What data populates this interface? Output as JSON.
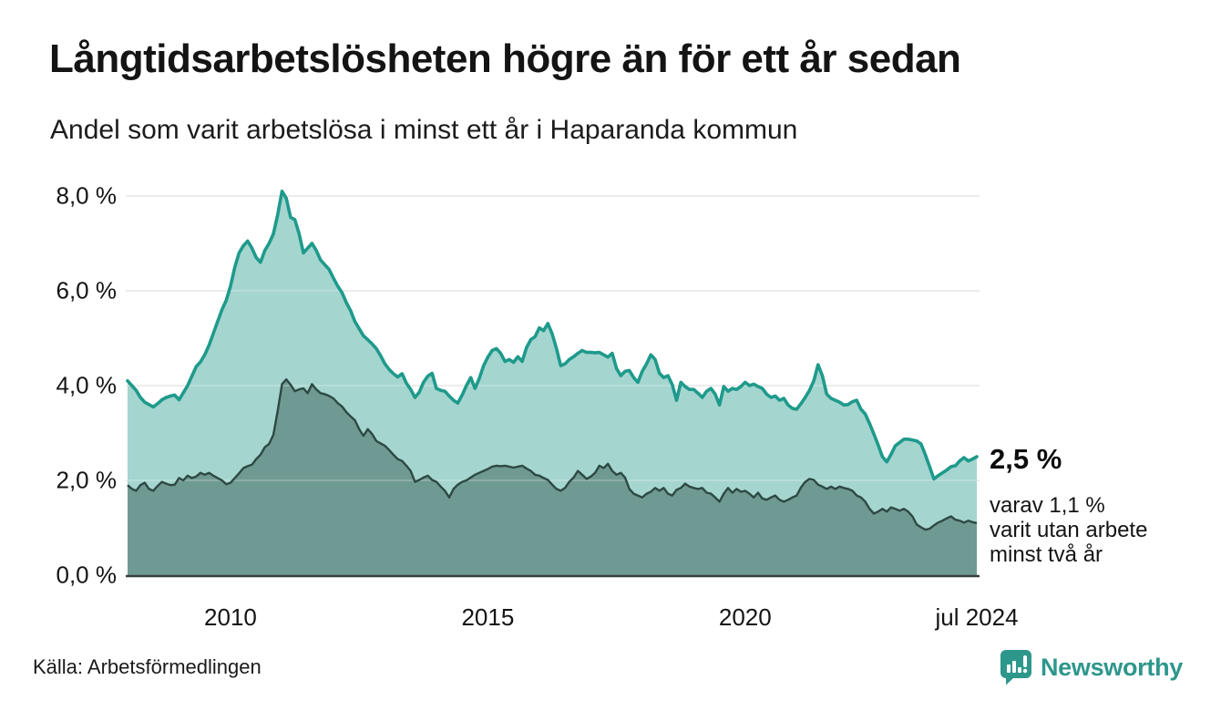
{
  "header": {
    "title": "Långtidsarbetslösheten högre än för ett år sedan",
    "subtitle": "Andel som varit arbetslösa i minst ett år i Haparanda kommun"
  },
  "annotation": {
    "value_label": "2,5 %",
    "detail_line1": "varav 1,1 %",
    "detail_line2": "varit utan arbete",
    "detail_line3": "minst två år"
  },
  "footer": {
    "source": "Källa: Arbetsförmedlingen",
    "brand": "Newsworthy"
  },
  "colors": {
    "series1_line": "#1e9a8b",
    "series1_fill": "#a5d5cf",
    "series2_line": "#2d4944",
    "series2_fill": "#6f9a93",
    "grid": "#e0e0e0",
    "axis": "#333f3c",
    "text": "#141414",
    "brand": "#2e978c"
  },
  "chart_data": {
    "type": "area",
    "title": "Långtidsarbetslösheten högre än för ett år sedan",
    "subtitle": "Andel som varit arbetslösa i minst ett år i Haparanda kommun",
    "unit": "%",
    "frequency": "monthly",
    "x_start": "2008-01",
    "x_end": "2024-07",
    "grid": true,
    "ylim": [
      0,
      8.6
    ],
    "y_tick_values": [
      0,
      2,
      4,
      6,
      8
    ],
    "y_tick_labels": [
      "0,0 %",
      "2,0 %",
      "4,0 %",
      "6,0 %",
      "8,0 %"
    ],
    "x_tick_labels": [
      "2010",
      "2015",
      "2020",
      "jul 2024"
    ],
    "x_tick_month_index": [
      24,
      84,
      144,
      198
    ],
    "end_labels": {
      "series1": "2,5 %",
      "series2": "1,1 %"
    },
    "series": [
      {
        "name": "Andel arbetslösa minst ett år",
        "last_value": 2.5,
        "values": [
          4.1,
          4.0,
          3.9,
          3.75,
          3.65,
          3.6,
          3.55,
          3.62,
          3.7,
          3.75,
          3.78,
          3.8,
          3.7,
          3.85,
          4.0,
          4.2,
          4.4,
          4.5,
          4.65,
          4.85,
          5.1,
          5.35,
          5.6,
          5.8,
          6.1,
          6.5,
          6.8,
          6.95,
          7.05,
          6.9,
          6.7,
          6.6,
          6.85,
          7.0,
          7.2,
          7.6,
          8.1,
          7.95,
          7.55,
          7.5,
          7.2,
          6.8,
          6.9,
          7.0,
          6.85,
          6.65,
          6.55,
          6.45,
          6.27,
          6.1,
          5.96,
          5.75,
          5.58,
          5.35,
          5.2,
          5.05,
          4.97,
          4.88,
          4.78,
          4.63,
          4.46,
          4.34,
          4.25,
          4.18,
          4.25,
          4.05,
          3.92,
          3.75,
          3.86,
          4.07,
          4.2,
          4.26,
          3.94,
          3.9,
          3.88,
          3.78,
          3.69,
          3.63,
          3.8,
          4.0,
          4.17,
          3.94,
          4.15,
          4.42,
          4.6,
          4.74,
          4.78,
          4.68,
          4.51,
          4.55,
          4.49,
          4.61,
          4.51,
          4.8,
          4.97,
          5.03,
          5.22,
          5.16,
          5.31,
          5.09,
          4.78,
          4.42,
          4.46,
          4.55,
          4.61,
          4.68,
          4.74,
          4.7,
          4.7,
          4.69,
          4.7,
          4.65,
          4.6,
          4.68,
          4.36,
          4.21,
          4.3,
          4.32,
          4.17,
          4.07,
          4.3,
          4.46,
          4.65,
          4.55,
          4.26,
          4.17,
          4.21,
          4.02,
          3.69,
          4.07,
          3.98,
          3.92,
          3.92,
          3.84,
          3.75,
          3.88,
          3.94,
          3.82,
          3.59,
          3.98,
          3.88,
          3.94,
          3.92,
          3.98,
          4.07,
          4.0,
          4.03,
          3.98,
          3.94,
          3.82,
          3.75,
          3.78,
          3.69,
          3.73,
          3.59,
          3.52,
          3.5,
          3.62,
          3.75,
          3.9,
          4.1,
          4.44,
          4.21,
          3.82,
          3.73,
          3.69,
          3.65,
          3.59,
          3.6,
          3.66,
          3.69,
          3.5,
          3.4,
          3.2,
          2.98,
          2.75,
          2.5,
          2.39,
          2.55,
          2.73,
          2.8,
          2.87,
          2.87,
          2.85,
          2.83,
          2.77,
          2.54,
          2.29,
          2.03,
          2.1,
          2.16,
          2.22,
          2.29,
          2.31,
          2.41,
          2.48,
          2.41,
          2.45,
          2.5
        ]
      },
      {
        "name": "Andel utan arbete minst två år",
        "last_value": 1.1,
        "values": [
          1.9,
          1.82,
          1.78,
          1.9,
          1.95,
          1.82,
          1.78,
          1.88,
          1.97,
          1.93,
          1.9,
          1.91,
          2.05,
          2.0,
          2.1,
          2.05,
          2.08,
          2.16,
          2.12,
          2.16,
          2.1,
          2.05,
          2.0,
          1.92,
          1.95,
          2.05,
          2.15,
          2.26,
          2.3,
          2.33,
          2.45,
          2.54,
          2.7,
          2.77,
          2.96,
          3.46,
          4.03,
          4.13,
          4.02,
          3.88,
          3.92,
          3.94,
          3.84,
          4.03,
          3.92,
          3.84,
          3.82,
          3.78,
          3.73,
          3.63,
          3.56,
          3.44,
          3.35,
          3.27,
          3.08,
          2.94,
          3.08,
          2.98,
          2.83,
          2.78,
          2.73,
          2.64,
          2.54,
          2.45,
          2.41,
          2.31,
          2.2,
          1.97,
          2.01,
          2.06,
          2.1,
          2.01,
          1.97,
          1.87,
          1.78,
          1.64,
          1.82,
          1.91,
          1.97,
          2.0,
          2.06,
          2.12,
          2.16,
          2.2,
          2.24,
          2.29,
          2.31,
          2.3,
          2.31,
          2.29,
          2.27,
          2.29,
          2.31,
          2.25,
          2.2,
          2.12,
          2.1,
          2.05,
          2.01,
          1.91,
          1.82,
          1.78,
          1.84,
          1.97,
          2.06,
          2.2,
          2.12,
          2.03,
          2.08,
          2.16,
          2.31,
          2.26,
          2.35,
          2.2,
          2.12,
          2.16,
          2.06,
          1.82,
          1.72,
          1.68,
          1.64,
          1.72,
          1.76,
          1.84,
          1.78,
          1.84,
          1.72,
          1.68,
          1.8,
          1.84,
          1.93,
          1.87,
          1.84,
          1.82,
          1.84,
          1.74,
          1.72,
          1.64,
          1.55,
          1.72,
          1.84,
          1.74,
          1.82,
          1.76,
          1.78,
          1.72,
          1.64,
          1.74,
          1.62,
          1.59,
          1.64,
          1.68,
          1.59,
          1.55,
          1.59,
          1.64,
          1.68,
          1.85,
          1.97,
          2.03,
          2.01,
          1.91,
          1.87,
          1.82,
          1.87,
          1.82,
          1.87,
          1.84,
          1.82,
          1.78,
          1.68,
          1.64,
          1.55,
          1.4,
          1.3,
          1.34,
          1.4,
          1.34,
          1.43,
          1.4,
          1.36,
          1.4,
          1.34,
          1.24,
          1.07,
          1.01,
          0.96,
          0.98,
          1.05,
          1.11,
          1.15,
          1.2,
          1.24,
          1.17,
          1.15,
          1.11,
          1.15,
          1.12,
          1.1
        ]
      }
    ]
  }
}
